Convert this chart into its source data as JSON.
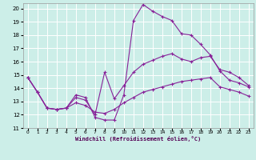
{
  "xlabel": "Windchill (Refroidissement éolien,°C)",
  "bg_color": "#cceee8",
  "grid_color": "#ffffff",
  "line_color": "#882299",
  "xlim": [
    -0.5,
    23.5
  ],
  "ylim": [
    11,
    20.4
  ],
  "xticks": [
    0,
    1,
    2,
    3,
    4,
    5,
    6,
    7,
    8,
    9,
    10,
    11,
    12,
    13,
    14,
    15,
    16,
    17,
    18,
    19,
    20,
    21,
    22,
    23
  ],
  "yticks": [
    11,
    12,
    13,
    14,
    15,
    16,
    17,
    18,
    19,
    20
  ],
  "series": [
    {
      "x": [
        0,
        1,
        2,
        3,
        4,
        5,
        6,
        7,
        8,
        9,
        10,
        11,
        12,
        13,
        14,
        15,
        16,
        17,
        18,
        19,
        20,
        21,
        22,
        23
      ],
      "y": [
        14.8,
        13.7,
        12.5,
        12.4,
        12.5,
        13.5,
        13.3,
        11.8,
        11.6,
        11.6,
        13.5,
        19.1,
        20.3,
        19.8,
        19.4,
        19.1,
        18.1,
        18.0,
        17.3,
        16.5,
        15.3,
        14.6,
        14.4,
        14.1
      ]
    },
    {
      "x": [
        0,
        1,
        2,
        3,
        4,
        5,
        6,
        7,
        8,
        9,
        10,
        11,
        12,
        13,
        14,
        15,
        16,
        17,
        18,
        19,
        20,
        21,
        22,
        23
      ],
      "y": [
        14.8,
        13.7,
        12.5,
        12.4,
        12.5,
        13.3,
        13.1,
        12.0,
        15.2,
        13.2,
        14.2,
        15.2,
        15.8,
        16.1,
        16.4,
        16.6,
        16.2,
        16.0,
        16.3,
        16.4,
        15.4,
        15.2,
        14.8,
        14.2
      ]
    },
    {
      "x": [
        0,
        1,
        2,
        3,
        4,
        5,
        6,
        7,
        8,
        9,
        10,
        11,
        12,
        13,
        14,
        15,
        16,
        17,
        18,
        19,
        20,
        21,
        22,
        23
      ],
      "y": [
        14.8,
        13.7,
        12.5,
        12.4,
        12.5,
        12.9,
        12.7,
        12.2,
        12.1,
        12.4,
        12.9,
        13.3,
        13.7,
        13.9,
        14.1,
        14.3,
        14.5,
        14.6,
        14.7,
        14.8,
        14.1,
        13.9,
        13.7,
        13.4
      ]
    }
  ]
}
